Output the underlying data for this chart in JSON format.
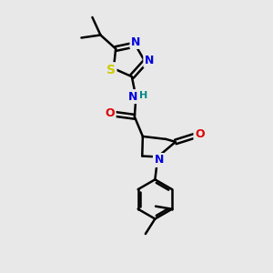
{
  "bg_color": "#e8e8e8",
  "bond_color": "#000000",
  "bond_width": 1.8,
  "atom_colors": {
    "N": "#0000dd",
    "O": "#dd0000",
    "S": "#cccc00",
    "H": "#008888"
  },
  "font_size": 9,
  "fig_width": 3.0,
  "fig_height": 3.0,
  "dpi": 100
}
